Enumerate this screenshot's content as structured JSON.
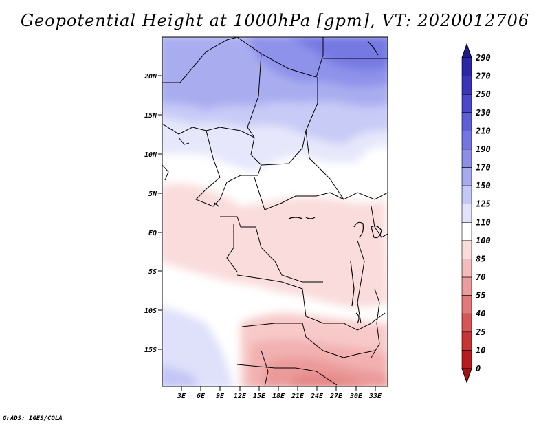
{
  "title": "Geopotential Height at 1000hPa [gpm], VT: 2020012706",
  "credit": "GrADS: IGES/COLA",
  "map": {
    "lat_ticks": [
      "20N",
      "15N",
      "10N",
      "5N",
      "EQ",
      "5S",
      "10S",
      "15S"
    ],
    "lon_ticks": [
      "3E",
      "6E",
      "9E",
      "12E",
      "15E",
      "18E",
      "21E",
      "24E",
      "27E",
      "30E",
      "33E"
    ]
  },
  "colorbar": {
    "levels": [
      "290",
      "270",
      "250",
      "230",
      "210",
      "190",
      "170",
      "150",
      "125",
      "110",
      "100",
      "85",
      "70",
      "55",
      "40",
      "25",
      "10",
      "0"
    ],
    "colors": [
      "#1e1a8c",
      "#2b26a6",
      "#3a35b8",
      "#4a48c8",
      "#5e5ed6",
      "#7475e0",
      "#8c8ee8",
      "#a7aaef",
      "#c5c8f5",
      "#e2e3fa",
      "#ffffff",
      "#fadcdc",
      "#f4bcbc",
      "#ec9c9c",
      "#e27a7a",
      "#d65656",
      "#c93434",
      "#b81c1c",
      "#a81010"
    ]
  }
}
